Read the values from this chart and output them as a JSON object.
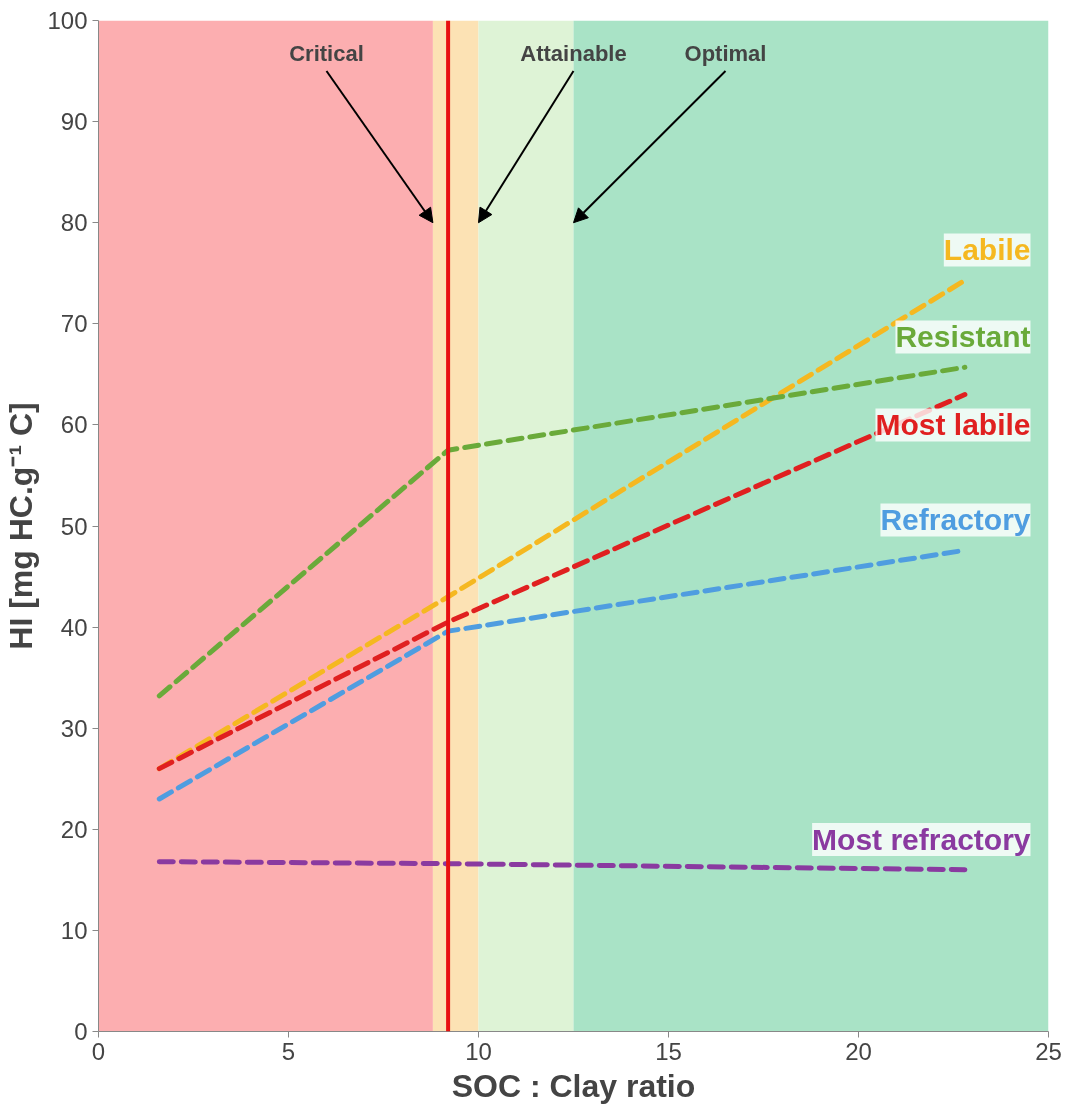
{
  "chart_data": {
    "type": "line",
    "xlabel": "SOC : Clay ratio",
    "ylabel": "HI [mg HC.g⁻¹ C]",
    "xlim": [
      0,
      25
    ],
    "ylim": [
      0,
      100
    ],
    "xticks": [
      0,
      5,
      10,
      15,
      20,
      25
    ],
    "yticks": [
      0,
      10,
      20,
      30,
      40,
      50,
      60,
      70,
      80,
      90,
      100
    ],
    "grid": false,
    "line_style": "dashed",
    "marker": "none",
    "series": [
      {
        "name": "Labile",
        "color": "#f5b820",
        "x": [
          1.6,
          9.2,
          22.8
        ],
        "values": [
          26.0,
          43.0,
          74.3
        ]
      },
      {
        "name": "Resistant",
        "color": "#6aaa3a",
        "x": [
          1.6,
          9.2,
          22.8
        ],
        "values": [
          33.2,
          57.5,
          65.7
        ]
      },
      {
        "name": "Most labile",
        "color": "#e02020",
        "x": [
          1.6,
          9.2,
          22.8
        ],
        "values": [
          26.0,
          40.5,
          63.0
        ]
      },
      {
        "name": "Refractory",
        "color": "#4f9de0",
        "x": [
          1.6,
          9.2,
          22.8
        ],
        "values": [
          23.0,
          39.6,
          47.6
        ]
      },
      {
        "name": "Most refractory",
        "color": "#8a3aa0",
        "x": [
          1.6,
          9.2,
          22.8
        ],
        "values": [
          16.8,
          16.6,
          16.0
        ]
      }
    ],
    "bands": [
      {
        "axis": "x",
        "from": 0,
        "to": 8.8,
        "color": "#fcaeb0"
      },
      {
        "axis": "x",
        "from": 8.8,
        "to": 10,
        "color": "#fce2b4"
      },
      {
        "axis": "x",
        "from": 10,
        "to": 12.5,
        "color": "#def3d6"
      },
      {
        "axis": "x",
        "from": 12.5,
        "to": 25,
        "color": "#a9e3c6"
      }
    ],
    "ref_lines": [
      {
        "axis": "x",
        "value": 9.2,
        "color": "#e81010"
      }
    ],
    "annotations": [
      {
        "text": "Critical",
        "x": 8.8,
        "y": 80
      },
      {
        "text": "Attainable",
        "x": 10,
        "y": 80
      },
      {
        "text": "Optimal",
        "x": 12.5,
        "y": 80
      }
    ]
  }
}
